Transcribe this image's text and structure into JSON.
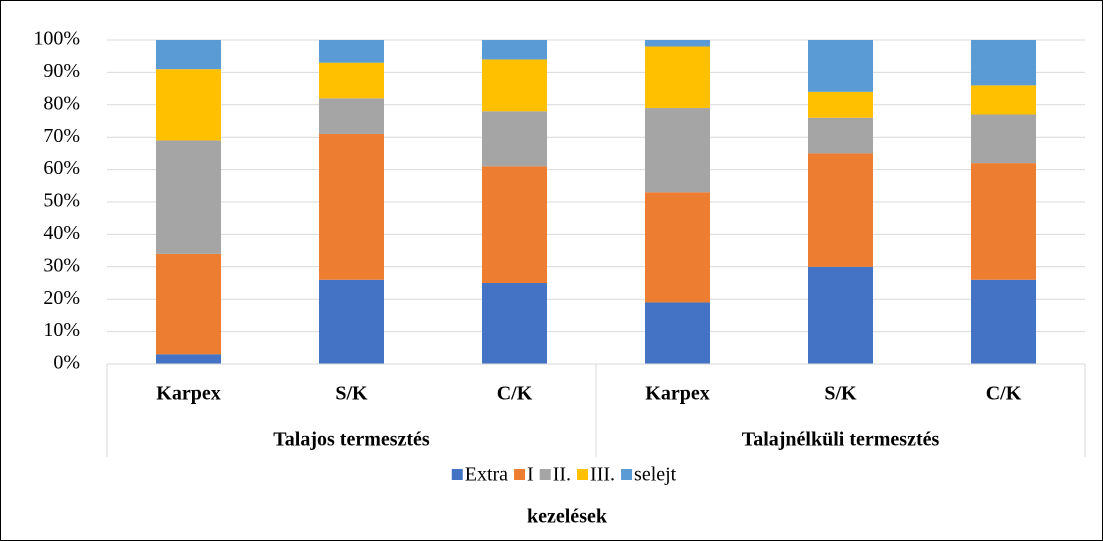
{
  "chart_data": {
    "type": "stacked_bar_100",
    "x_axis_label": "kezelések",
    "groups": [
      {
        "name": "Talajos termesztés",
        "categories": [
          "Karpex",
          "S/K",
          "C/K"
        ]
      },
      {
        "name": "Talajnélküli termesztés",
        "categories": [
          "Karpex",
          "S/K",
          "C/K"
        ]
      }
    ],
    "series": [
      {
        "name": "Extra",
        "color": "#4472c4",
        "values": [
          3,
          26,
          25,
          19,
          30,
          26
        ]
      },
      {
        "name": "I",
        "color": "#ed7d31",
        "values": [
          31,
          45,
          36,
          34,
          35,
          36
        ]
      },
      {
        "name": "II.",
        "color": "#a5a5a5",
        "values": [
          35,
          11,
          17,
          26,
          11,
          15
        ]
      },
      {
        "name": "III.",
        "color": "#ffc000",
        "values": [
          22,
          11,
          16,
          19,
          8,
          9
        ]
      },
      {
        "name": "selejt",
        "color": "#5b9bd5",
        "values": [
          9,
          7,
          6,
          2,
          16,
          14
        ]
      }
    ],
    "ylim": [
      0,
      100
    ],
    "yticks": [
      {
        "value": 0,
        "label": "0%"
      },
      {
        "value": 10,
        "label": "10%"
      },
      {
        "value": 20,
        "label": "20%"
      },
      {
        "value": 30,
        "label": "30%"
      },
      {
        "value": 40,
        "label": "40%"
      },
      {
        "value": 50,
        "label": "50%"
      },
      {
        "value": 60,
        "label": "60%"
      },
      {
        "value": 70,
        "label": "70%"
      },
      {
        "value": 80,
        "label": "80%"
      },
      {
        "value": 90,
        "label": "90%"
      },
      {
        "value": 100,
        "label": "100%"
      }
    ],
    "grid": true,
    "legend": "bottom"
  }
}
